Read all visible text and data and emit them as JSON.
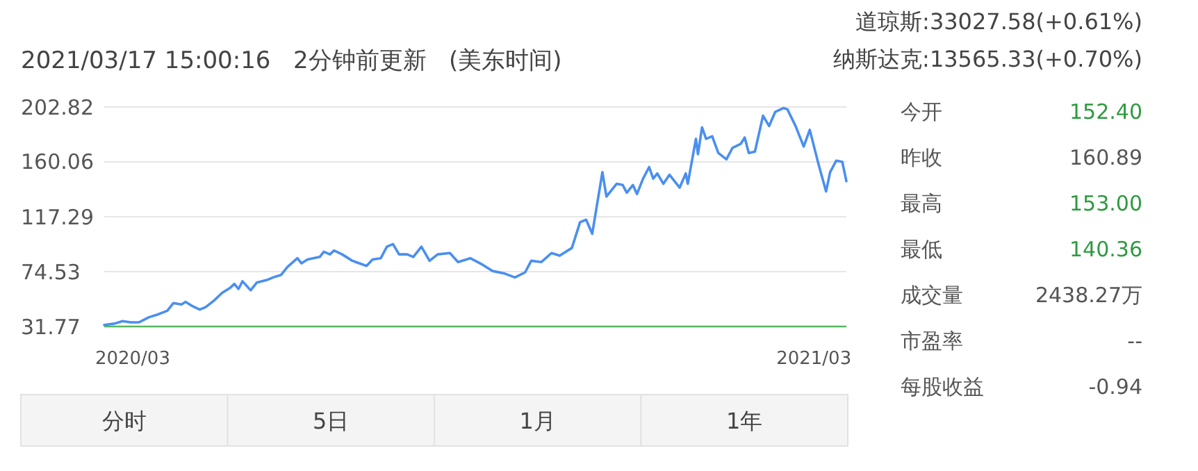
{
  "chart_data": [
    {
      "type": "line",
      "title": "2021/03/17 15:00:16   2分钟前更新   (美东时间)",
      "xlim": [
        "2020-03-17",
        "2021-03-17"
      ],
      "xticks": [
        {
          "value": "2020-03-31",
          "label": "2020/03"
        },
        {
          "value": "2021-03-01",
          "label": "2021/03"
        }
      ],
      "ylim": [
        31.77,
        202.82
      ],
      "yticks": [
        31.77,
        74.53,
        117.29,
        160.06,
        202.82
      ],
      "grid": "y",
      "marker": "none",
      "line_style": "solid",
      "series": [
        {
          "color": "#4a8ff0",
          "x": [
            "2020-03-17",
            "2020-03-22",
            "2020-03-26",
            "2020-03-30",
            "2020-04-03",
            "2020-04-08",
            "2020-04-12",
            "2020-04-17",
            "2020-04-20",
            "2020-04-24",
            "2020-04-26",
            "2020-04-29",
            "2020-05-03",
            "2020-05-06",
            "2020-05-10",
            "2020-05-14",
            "2020-05-18",
            "2020-05-20",
            "2020-05-22",
            "2020-05-24",
            "2020-05-28",
            "2020-05-31",
            "2020-06-05",
            "2020-06-08",
            "2020-06-12",
            "2020-06-15",
            "2020-06-20",
            "2020-06-22",
            "2020-06-25",
            "2020-07-01",
            "2020-07-03",
            "2020-07-06",
            "2020-07-08",
            "2020-07-12",
            "2020-07-17",
            "2020-07-24",
            "2020-07-27",
            "2020-07-31",
            "2020-08-03",
            "2020-08-06",
            "2020-08-09",
            "2020-08-13",
            "2020-08-16",
            "2020-08-20",
            "2020-08-24",
            "2020-08-28",
            "2020-09-03",
            "2020-09-07",
            "2020-09-13",
            "2020-09-19",
            "2020-09-24",
            "2020-09-30",
            "2020-10-05",
            "2020-10-10",
            "2020-10-13",
            "2020-10-18",
            "2020-10-23",
            "2020-10-27",
            "2020-11-02",
            "2020-11-06",
            "2020-11-09",
            "2020-11-12",
            "2020-11-17",
            "2020-11-19",
            "2020-11-24",
            "2020-11-27",
            "2020-11-29",
            "2020-12-02",
            "2020-12-04",
            "2020-12-07",
            "2020-12-10",
            "2020-12-12",
            "2020-12-14",
            "2020-12-17",
            "2020-12-20",
            "2020-12-25",
            "2020-12-28",
            "2020-12-29",
            "2021-01-02",
            "2021-01-03",
            "2021-01-05",
            "2021-01-07",
            "2021-01-10",
            "2021-01-13",
            "2021-01-17",
            "2021-01-20",
            "2021-01-24",
            "2021-01-26",
            "2021-01-28",
            "2021-01-31",
            "2021-02-04",
            "2021-02-07",
            "2021-02-10",
            "2021-02-14",
            "2021-02-16",
            "2021-02-20",
            "2021-02-24",
            "2021-02-27",
            "2021-03-03",
            "2021-03-07",
            "2021-03-09",
            "2021-03-12",
            "2021-03-15",
            "2021-03-17"
          ],
          "values": [
            33,
            34,
            36,
            35,
            35,
            39,
            41,
            44,
            50,
            49,
            51,
            48,
            45,
            47,
            52,
            58,
            62,
            65,
            61,
            67,
            60,
            66,
            68,
            70,
            72,
            78,
            85,
            81,
            84,
            86,
            90,
            88,
            91,
            88,
            83,
            79,
            84,
            85,
            94,
            96,
            88,
            88,
            86,
            94,
            83,
            88,
            89,
            82,
            85,
            80,
            75,
            73,
            70,
            74,
            83,
            82,
            89,
            87,
            93,
            113,
            115,
            104,
            152,
            133,
            143,
            142,
            136,
            142,
            135,
            147,
            156,
            147,
            151,
            143,
            150,
            140,
            151,
            143,
            178,
            166,
            187,
            178,
            180,
            167,
            162,
            171,
            174,
            179,
            167,
            168,
            196,
            188,
            199,
            202,
            201,
            188,
            172,
            185,
            160,
            137,
            152,
            161,
            160,
            145
          ]
        }
      ]
    },
    {
      "type": "other",
      "annotations": [
        "道琼斯:33027.58(+0.61%)",
        "纳斯达克:13565.33(+0.70%)"
      ],
      "categories": [
        "今开",
        "昨收",
        "最高",
        "最低",
        "成交量",
        "市盈率",
        "每股收益"
      ],
      "value_labels": [
        "152.40",
        "160.89",
        "153.00",
        "140.36",
        "2438.27万",
        "--",
        "-0.94"
      ],
      "colors": [
        "#2e9a3e",
        "#555555",
        "#2e9a3e",
        "#2e9a3e",
        "#555555",
        "#555555",
        "#555555"
      ]
    },
    {
      "type": "other",
      "categories": [
        "分时",
        "5日",
        "1月",
        "1年"
      ]
    }
  ]
}
